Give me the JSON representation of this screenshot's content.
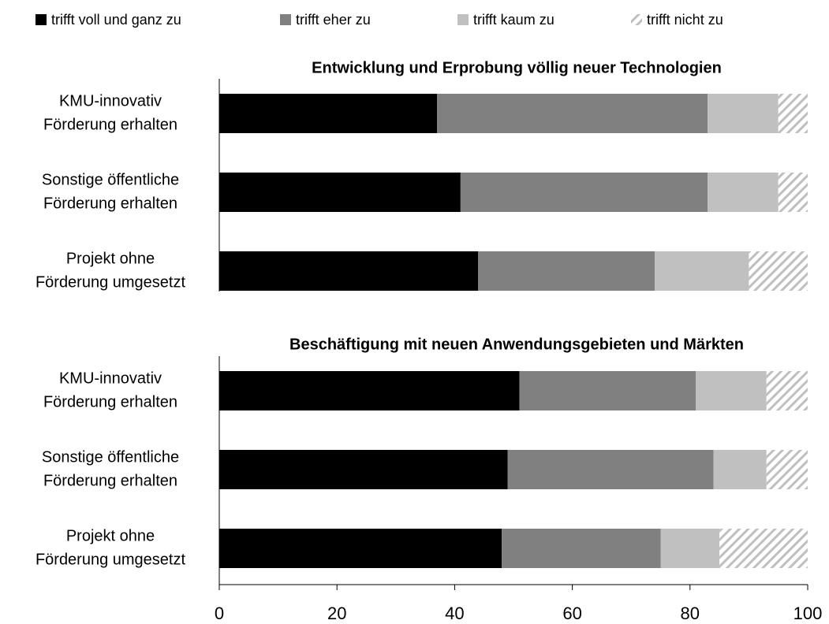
{
  "chart_data": [
    {
      "type": "bar",
      "orientation": "horizontal",
      "stacked": true,
      "title": "Entwicklung und Erprobung völlig neuer Technologien",
      "categories": [
        [
          "KMU-innovativ",
          "Förderung erhalten"
        ],
        [
          "Sonstige öffentliche",
          "Förderung erhalten"
        ],
        [
          "Projekt ohne",
          "Förderung umgesetzt"
        ]
      ],
      "series": [
        {
          "name": "trifft voll und ganz zu",
          "color": "#000000",
          "values": [
            37,
            41,
            44
          ]
        },
        {
          "name": "trifft eher zu",
          "color": "#808080",
          "values": [
            46,
            42,
            30
          ]
        },
        {
          "name": "trifft kaum zu",
          "color": "#c0c0c0",
          "values": [
            12,
            12,
            16
          ]
        },
        {
          "name": "trifft nicht zu",
          "color": "#bfbfbf",
          "hatch": true,
          "values": [
            5,
            5,
            10
          ]
        }
      ],
      "xlim": [
        0,
        100
      ]
    },
    {
      "type": "bar",
      "orientation": "horizontal",
      "stacked": true,
      "title": "Beschäftigung mit neuen Anwendungsgebieten und Märkten",
      "categories": [
        [
          "KMU-innovativ",
          "Förderung erhalten"
        ],
        [
          "Sonstige öffentliche",
          "Förderung erhalten"
        ],
        [
          "Projekt ohne",
          "Förderung umgesetzt"
        ]
      ],
      "series": [
        {
          "color": "#000000",
          "values": [
            51,
            49,
            48
          ]
        },
        {
          "color": "#808080",
          "values": [
            30,
            35,
            27
          ]
        },
        {
          "color": "#c0c0c0",
          "values": [
            12,
            9,
            10
          ]
        },
        {
          "color": "#bfbfbf",
          "hatch": true,
          "values": [
            7,
            7,
            15
          ]
        }
      ],
      "xlim": [
        0,
        100
      ],
      "xticks": [
        0,
        20,
        40,
        60,
        80,
        100
      ]
    }
  ]
}
